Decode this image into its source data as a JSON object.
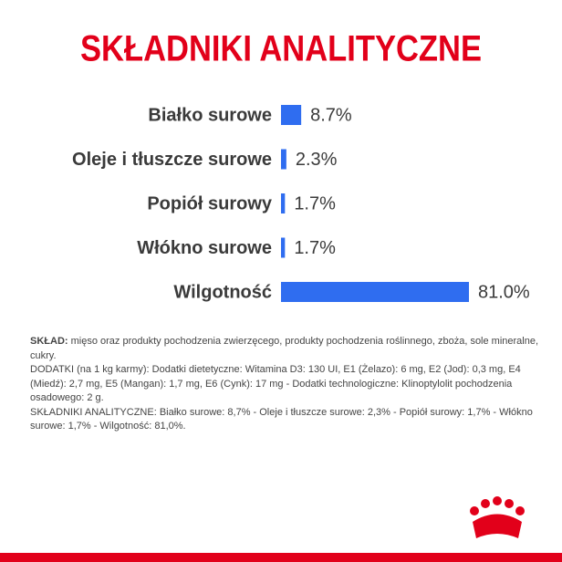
{
  "chart_data": {
    "type": "hbar",
    "title": "SKŁADNIKI ANALITYCZNE",
    "categories": [
      "Białko surowe",
      "Oleje i tłuszcze surowe",
      "Popiół surowy",
      "Włókno surowe",
      "Wilgotność"
    ],
    "values": [
      8.7,
      2.3,
      1.7,
      1.7,
      81.0
    ],
    "value_labels": [
      "8.7%",
      "2.3%",
      "1.7%",
      "1.7%",
      "81.0%"
    ],
    "color": "#2f6df0"
  },
  "composition": {
    "label": "SKŁAD:",
    "text": "mięso oraz produkty pochodzenia zwierzęcego, produkty pochodzenia roślinnego, zboża, sole mineralne, cukry.",
    "additives": "DODATKI (na 1 kg karmy): Dodatki dietetyczne: Witamina D3: 130 UI, E1 (Żelazo): 6 mg, E2 (Jod): 0,3 mg, E4 (Miedź): 2,7 mg, E5 (Mangan): 1,7 mg, E6 (Cynk): 17 mg - Dodatki technologiczne: Klinoptylolit pochodzenia osadowego: 2 g.",
    "analytical": "SKŁADNIKI ANALITYCZNE: Białko surowe: 8,7% - Oleje i tłuszcze surowe: 2,3% - Popiół surowy: 1,7% - Włókno surowe: 1,7% - Wilgotność: 81,0%."
  }
}
